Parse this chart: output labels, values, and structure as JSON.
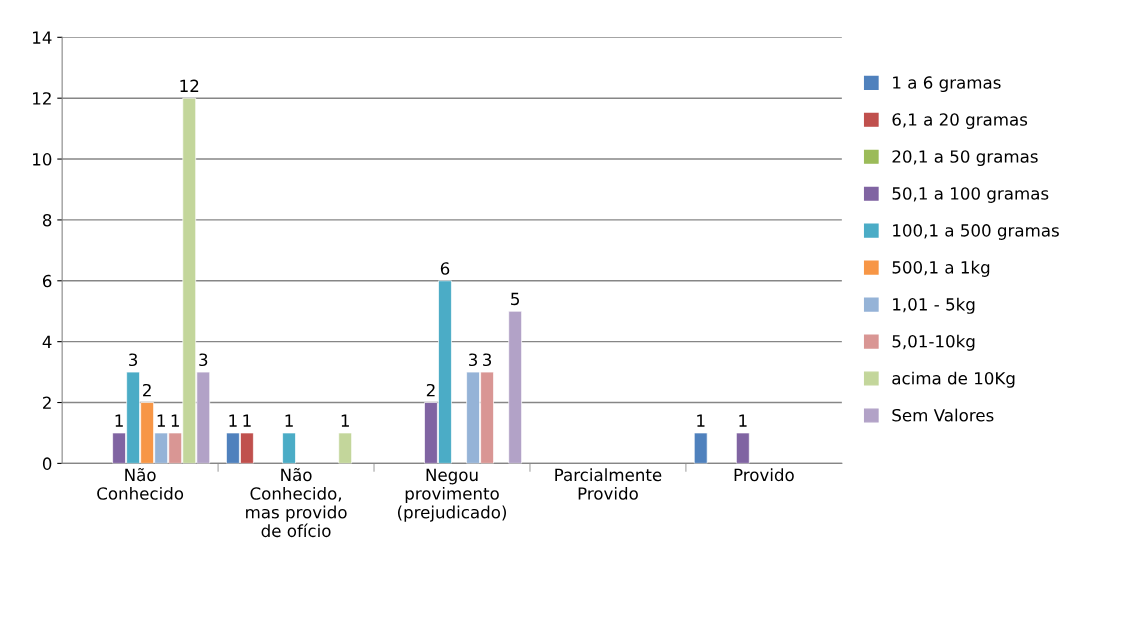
{
  "chart_data": {
    "type": "bar",
    "categories": [
      "Não\nConhecido",
      "Não\nConhecido,\nmas provido\nde ofício",
      "Negou\nprovimento\n(prejudicado)",
      "Parcialmente\nProvido",
      "Provido"
    ],
    "series": [
      {
        "name": "1 a 6 gramas",
        "color": "#4f81bd",
        "values": [
          null,
          1,
          null,
          null,
          1
        ]
      },
      {
        "name": "6,1 a 20 gramas",
        "color": "#c0504d",
        "values": [
          null,
          1,
          null,
          null,
          null
        ]
      },
      {
        "name": "20,1 a 50 gramas",
        "color": "#9bbb59",
        "values": [
          null,
          null,
          null,
          null,
          null
        ]
      },
      {
        "name": "50,1 a 100 gramas",
        "color": "#8064a2",
        "values": [
          1,
          null,
          2,
          null,
          1
        ]
      },
      {
        "name": "100,1 a 500 gramas",
        "color": "#4bacc6",
        "values": [
          3,
          1,
          6,
          null,
          null
        ]
      },
      {
        "name": "500,1 a 1kg",
        "color": "#f79646",
        "values": [
          2,
          null,
          null,
          null,
          null
        ]
      },
      {
        "name": "1,01 - 5kg",
        "color": "#95b3d7",
        "values": [
          1,
          null,
          3,
          null,
          null
        ]
      },
      {
        "name": "5,01-10kg",
        "color": "#d99694",
        "values": [
          1,
          null,
          3,
          null,
          null
        ]
      },
      {
        "name": "acima de 10Kg",
        "color": "#c3d69b",
        "values": [
          12,
          1,
          null,
          null,
          null
        ]
      },
      {
        "name": "Sem Valores",
        "color": "#b2a2c7",
        "values": [
          3,
          null,
          5,
          null,
          null
        ]
      }
    ],
    "ylim": [
      0,
      14
    ],
    "yticks": [
      0,
      2,
      4,
      6,
      8,
      10,
      12,
      14
    ],
    "grid": "y",
    "legend": "right",
    "data_labels": true
  }
}
